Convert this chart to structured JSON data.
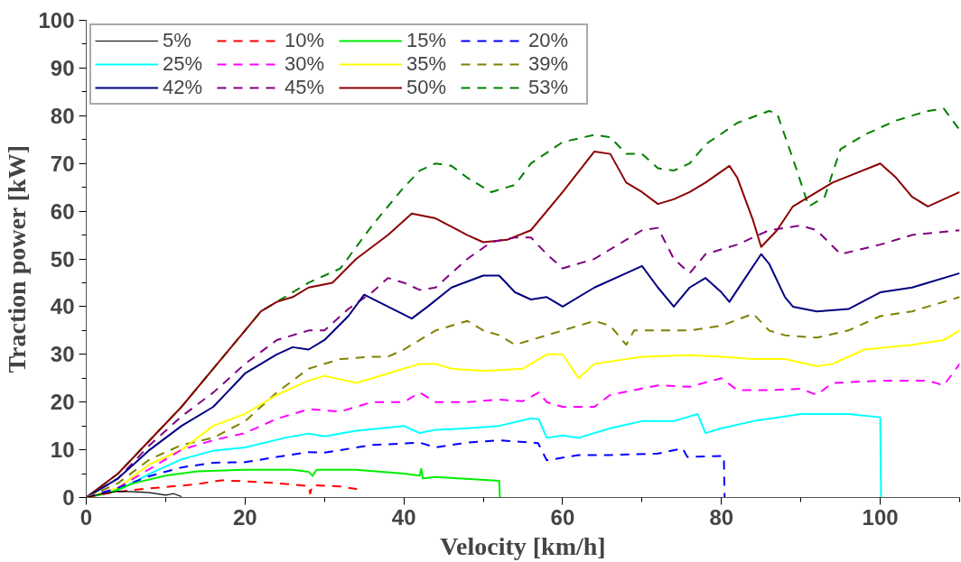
{
  "chart_data": {
    "type": "line",
    "xlabel": "Velocity [km/h]",
    "ylabel": "Traction power [kW]",
    "xlim": [
      0,
      110
    ],
    "ylim": [
      0,
      100
    ],
    "xticks": [
      0,
      20,
      40,
      60,
      80,
      100
    ],
    "yticks": [
      0,
      10,
      20,
      30,
      40,
      50,
      60,
      70,
      80,
      90,
      100
    ],
    "grid": false,
    "legend": "top left",
    "marker": "none",
    "series": [
      {
        "name": "5%",
        "color": "#000000",
        "line_style": "solid",
        "x": [
          0,
          2,
          4,
          6,
          8,
          10,
          11,
          12
        ],
        "values": [
          0,
          0.8,
          1.3,
          1.2,
          1,
          0.5,
          0.8,
          0.2
        ]
      },
      {
        "name": "10%",
        "color": "#ff0000",
        "line_style": "dashed",
        "x": [
          0,
          3,
          6,
          10,
          14,
          17,
          20,
          24,
          28,
          28.2,
          28.5,
          32,
          34,
          34.1
        ],
        "values": [
          0,
          1,
          1.6,
          2.2,
          2.8,
          3.6,
          3.4,
          3,
          2.4,
          0.8,
          2.6,
          2.3,
          1.8,
          0
        ]
      },
      {
        "name": "15%",
        "color": "#00ee00",
        "line_style": "solid",
        "x": [
          0,
          3,
          6,
          10,
          14,
          20,
          26,
          28,
          28.5,
          29,
          34,
          40,
          42,
          42.2,
          42.4,
          44,
          52,
          52.1
        ],
        "values": [
          0,
          1,
          3,
          4.6,
          5.5,
          5.8,
          5.8,
          5.4,
          4.5,
          5.8,
          5.8,
          5,
          4.6,
          6,
          4,
          4.3,
          3.5,
          0
        ]
      },
      {
        "name": "20%",
        "color": "#0000ff",
        "line_style": "dashed",
        "x": [
          0,
          4,
          8,
          12,
          16,
          20,
          24,
          28,
          30,
          36,
          42,
          44,
          48,
          52,
          56.9,
          58,
          62,
          66,
          72,
          75.1,
          75.7,
          80.3,
          80.4
        ],
        "values": [
          0,
          2,
          4.5,
          6.3,
          7.3,
          7.4,
          8.5,
          9.5,
          9.4,
          11,
          11.5,
          10.5,
          11.5,
          12,
          11.4,
          7.8,
          8.9,
          8.9,
          9.2,
          10.3,
          8.5,
          8.7,
          0
        ]
      },
      {
        "name": "25%",
        "color": "#00ffff",
        "line_style": "solid",
        "x": [
          0,
          4,
          8,
          12,
          16,
          20,
          25,
          28,
          30,
          34,
          40,
          42,
          44,
          48,
          52,
          56,
          57,
          58,
          60,
          62,
          66,
          70,
          74,
          77,
          78,
          80,
          84,
          90,
          96,
          100,
          100.1
        ],
        "values": [
          0,
          1.5,
          5,
          8,
          9.8,
          10.5,
          12.5,
          13.4,
          12.8,
          14,
          15,
          13.5,
          14.2,
          14.5,
          15,
          16.6,
          16.4,
          12.5,
          13,
          12.5,
          14.5,
          16,
          16,
          17.5,
          13.5,
          14.5,
          16,
          17.5,
          17.5,
          16.8,
          0
        ]
      },
      {
        "name": "30%",
        "color": "#ff00ff",
        "line_style": "dashed",
        "x": [
          0,
          4,
          8,
          12,
          16,
          20,
          24,
          28,
          32,
          36,
          40,
          42,
          44,
          48,
          52,
          55,
          57,
          58,
          60,
          64,
          66,
          72,
          76,
          80,
          82,
          86,
          90,
          92,
          94,
          100,
          106,
          108,
          110
        ],
        "values": [
          0,
          2,
          6,
          10,
          12,
          13.5,
          16.5,
          18.5,
          18,
          20,
          20,
          22,
          20,
          20,
          20.5,
          20.2,
          22,
          20,
          19,
          19,
          21.5,
          23.5,
          23.2,
          25,
          22.5,
          22.5,
          22.8,
          21.5,
          24,
          24.5,
          24.5,
          23.5,
          28
        ]
      },
      {
        "name": "35%",
        "color": "#ffff00",
        "line_style": "solid",
        "x": [
          0,
          4,
          8,
          12,
          16,
          20,
          24,
          28,
          30,
          34,
          38,
          42,
          44,
          46,
          50,
          55,
          58,
          60,
          62,
          64,
          70,
          76,
          80,
          84,
          88,
          92,
          94,
          98,
          104,
          108,
          110
        ],
        "values": [
          0,
          2,
          7,
          10,
          15,
          17.5,
          21.5,
          24.5,
          25.5,
          24,
          26,
          28,
          28,
          27,
          26.5,
          27,
          30,
          30,
          25,
          28,
          29.5,
          29.8,
          29.5,
          29,
          29,
          27.5,
          28,
          31,
          32,
          33,
          35
        ]
      },
      {
        "name": "39%",
        "color": "#808000",
        "line_style": "dashed",
        "x": [
          0,
          4,
          8,
          12,
          16,
          20,
          24,
          28,
          32,
          36,
          38,
          40,
          44,
          48,
          50,
          52,
          54,
          56,
          60,
          64,
          66,
          68,
          69,
          72,
          76,
          80,
          84,
          86,
          88,
          92,
          96,
          100,
          104,
          110
        ],
        "values": [
          0,
          3,
          8,
          11,
          12.5,
          16,
          22,
          27,
          29,
          29.5,
          29.5,
          31,
          35,
          37,
          35,
          34,
          32,
          33,
          35,
          37,
          36,
          32,
          35,
          35,
          35,
          36,
          38.5,
          35,
          34,
          33.5,
          35,
          38,
          39,
          42
        ]
      },
      {
        "name": "42%",
        "color": "#000080",
        "line_style": "solid",
        "x": [
          0,
          4,
          8,
          12,
          16,
          20,
          24,
          26,
          28,
          30,
          33,
          35,
          38,
          41,
          43,
          46,
          50,
          52,
          54,
          56,
          58,
          60,
          64,
          68,
          70,
          72,
          74,
          76,
          78,
          80,
          81,
          83,
          85,
          86,
          88,
          89,
          92,
          96,
          100,
          104,
          110
        ],
        "values": [
          0,
          4,
          10,
          15,
          19,
          26,
          30,
          31.5,
          31,
          33,
          38,
          42.5,
          40,
          37.5,
          40,
          44,
          46.5,
          46.5,
          43,
          41.5,
          42,
          40,
          44,
          47,
          48.5,
          44,
          40,
          44,
          46,
          43,
          41,
          46,
          51,
          49,
          42,
          40,
          39,
          39.5,
          43,
          44,
          47
        ]
      },
      {
        "name": "45%",
        "color": "#800080",
        "line_style": "dashed",
        "x": [
          0,
          4,
          8,
          12,
          16,
          20,
          24,
          28,
          30,
          33,
          36,
          38,
          40,
          42,
          44,
          48,
          51,
          54,
          56,
          58,
          60,
          64,
          68,
          70,
          72,
          74,
          76,
          78,
          82,
          86,
          90,
          92,
          95,
          100,
          104,
          110
        ],
        "values": [
          0,
          4,
          11,
          17,
          22,
          28,
          33,
          35,
          35,
          39.5,
          43,
          46,
          45,
          43.5,
          44,
          50,
          53.5,
          54.5,
          54.5,
          51,
          48,
          50,
          54,
          56,
          56.5,
          50,
          47,
          51,
          53,
          56,
          57,
          56,
          51,
          53,
          55,
          56
        ]
      },
      {
        "name": "50%",
        "color": "#8b0000",
        "line_style": "solid",
        "x": [
          0,
          4,
          8,
          12,
          16,
          20,
          22,
          24,
          26,
          28,
          31,
          34,
          38,
          41,
          44,
          48,
          50,
          53,
          56,
          60,
          64,
          66,
          68,
          70,
          72,
          74,
          76,
          78,
          81,
          82,
          84,
          85,
          87,
          89,
          94,
          100,
          102,
          104,
          106,
          110
        ],
        "values": [
          0,
          5,
          12,
          19,
          27,
          35,
          39,
          41,
          42,
          44,
          45,
          50,
          55,
          59.5,
          58.5,
          55,
          53.5,
          54,
          56,
          64,
          72.5,
          72,
          66,
          64,
          61.5,
          62.5,
          64,
          66,
          69.5,
          67,
          58,
          52.5,
          56,
          61,
          66,
          70,
          67,
          63,
          61,
          64
        ]
      },
      {
        "name": "53%",
        "color": "#008000",
        "line_style": "dashed",
        "x": [
          0,
          4,
          8,
          12,
          16,
          20,
          22,
          24,
          28,
          32,
          36,
          40,
          42,
          44,
          46,
          48,
          51,
          54,
          56,
          60,
          64,
          66,
          68,
          70,
          72,
          74,
          76,
          78,
          82,
          86,
          87,
          89,
          91,
          93,
          95,
          98,
          102,
          106,
          108,
          110
        ],
        "values": [
          0,
          5,
          12,
          19,
          27,
          35,
          39,
          41,
          45,
          48,
          57,
          65,
          68.5,
          70,
          69.5,
          67,
          64,
          65.5,
          70,
          74.5,
          76,
          75.5,
          72,
          72,
          69,
          68.5,
          70,
          74,
          78.5,
          81,
          80.5,
          71,
          61,
          63,
          73,
          76,
          79,
          81,
          81.5,
          77
        ]
      }
    ]
  }
}
